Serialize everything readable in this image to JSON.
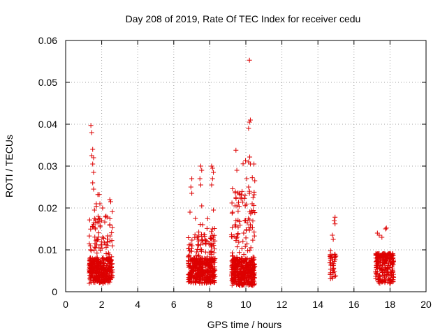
{
  "chart_data": {
    "type": "scatter",
    "title": "Day 208 of 2019, Rate Of TEC Index for receiver cedu",
    "xlabel": "GPS time / hours",
    "ylabel": "ROTI / TECUs",
    "xlim": [
      0,
      20
    ],
    "ylim": [
      0,
      0.06
    ],
    "xticks": [
      0,
      2,
      4,
      6,
      8,
      10,
      12,
      14,
      16,
      18,
      20
    ],
    "yticks": [
      0,
      0.01,
      0.02,
      0.03,
      0.04,
      0.05,
      0.06
    ],
    "xtick_labels": [
      "0",
      "2",
      "4",
      "6",
      "8",
      "10",
      "12",
      "14",
      "16",
      "18",
      "20"
    ],
    "ytick_labels": [
      "0",
      "0.01",
      "0.02",
      "0.03",
      "0.04",
      "0.05",
      "0.06"
    ],
    "grid": true,
    "marker": "+",
    "marker_color": "#dd0000",
    "clusters": [
      {
        "x_start": 1.3,
        "x_end": 2.6,
        "y_base": [
          0.002,
          0.008
        ],
        "y_max": 0.0398,
        "count": 420,
        "peaks": [
          [
            1.4,
            0.0397
          ],
          [
            1.45,
            0.038
          ],
          [
            1.5,
            0.034
          ],
          [
            1.55,
            0.032
          ],
          [
            1.5,
            0.0305
          ],
          [
            1.45,
            0.0325
          ],
          [
            1.55,
            0.0285
          ],
          [
            1.5,
            0.026
          ],
          [
            1.55,
            0.0245
          ],
          [
            1.7,
            0.021
          ],
          [
            1.9,
            0.021
          ],
          [
            2.05,
            0.02
          ],
          [
            2.45,
            0.022
          ],
          [
            2.5,
            0.0215
          ],
          [
            1.6,
            0.0195
          ],
          [
            1.8,
            0.018
          ],
          [
            2.0,
            0.017
          ],
          [
            2.45,
            0.016
          ],
          [
            1.65,
            0.015
          ]
        ]
      },
      {
        "x_start": 6.8,
        "x_end": 8.3,
        "y_base": [
          0.002,
          0.008
        ],
        "y_max": 0.0303,
        "count": 460,
        "peaks": [
          [
            7.0,
            0.027
          ],
          [
            6.95,
            0.025
          ],
          [
            7.0,
            0.0235
          ],
          [
            7.5,
            0.03
          ],
          [
            7.55,
            0.029
          ],
          [
            7.45,
            0.027
          ],
          [
            7.5,
            0.0255
          ],
          [
            8.1,
            0.03
          ],
          [
            8.15,
            0.0295
          ],
          [
            8.2,
            0.0285
          ],
          [
            8.15,
            0.027
          ],
          [
            8.1,
            0.0255
          ],
          [
            7.55,
            0.0205
          ],
          [
            6.9,
            0.019
          ],
          [
            7.2,
            0.0175
          ],
          [
            8.2,
            0.0195
          ],
          [
            7.6,
            0.016
          ],
          [
            8.15,
            0.015
          ]
        ]
      },
      {
        "x_start": 9.2,
        "x_end": 10.5,
        "y_base": [
          0.0015,
          0.008
        ],
        "y_max": 0.0553,
        "count": 480,
        "peaks": [
          [
            10.2,
            0.0553
          ],
          [
            10.25,
            0.041
          ],
          [
            10.2,
            0.0405
          ],
          [
            10.15,
            0.039
          ],
          [
            9.45,
            0.0338
          ],
          [
            10.15,
            0.031
          ],
          [
            10.25,
            0.0305
          ],
          [
            10.45,
            0.0305
          ],
          [
            9.5,
            0.029
          ],
          [
            10.05,
            0.027
          ],
          [
            10.15,
            0.025
          ],
          [
            10.2,
            0.0235
          ],
          [
            10.4,
            0.0225
          ],
          [
            10.35,
            0.021
          ],
          [
            9.45,
            0.0225
          ],
          [
            9.4,
            0.0205
          ],
          [
            10.35,
            0.019
          ],
          [
            9.45,
            0.017
          ],
          [
            9.4,
            0.016
          ]
        ]
      },
      {
        "x_start": 14.65,
        "x_end": 15.0,
        "y_base": [
          0.003,
          0.009
        ],
        "y_max": 0.0178,
        "count": 40,
        "peaks": [
          [
            14.95,
            0.0178
          ],
          [
            14.9,
            0.017
          ],
          [
            14.95,
            0.0162
          ],
          [
            14.8,
            0.0135
          ],
          [
            14.85,
            0.0125
          ],
          [
            14.7,
            0.0098
          ]
        ]
      },
      {
        "x_start": 17.2,
        "x_end": 18.2,
        "y_base": [
          0.002,
          0.009
        ],
        "y_max": 0.0152,
        "count": 230,
        "peaks": [
          [
            17.8,
            0.0152
          ],
          [
            17.75,
            0.015
          ],
          [
            17.3,
            0.014
          ],
          [
            17.4,
            0.0135
          ],
          [
            17.55,
            0.013
          ],
          [
            18.1,
            0.0085
          ],
          [
            18.15,
            0.005
          ]
        ]
      }
    ]
  }
}
